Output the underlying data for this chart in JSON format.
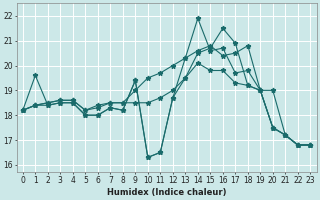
{
  "xlabel": "Humidex (Indice chaleur)",
  "bg_color": "#cce8e8",
  "line_color": "#1a6b6b",
  "grid_color": "#ffffff",
  "xlim": [
    -0.5,
    23.5
  ],
  "ylim": [
    15.7,
    22.5
  ],
  "yticks": [
    16,
    17,
    18,
    19,
    20,
    21,
    22
  ],
  "xticks": [
    0,
    1,
    2,
    3,
    4,
    5,
    6,
    7,
    8,
    9,
    10,
    11,
    12,
    13,
    14,
    15,
    16,
    17,
    18,
    19,
    20,
    21,
    22,
    23
  ],
  "series": [
    {
      "x": [
        0,
        1,
        2,
        3,
        4,
        5,
        6,
        7,
        8,
        9,
        10,
        11,
        12,
        13,
        14,
        15,
        16,
        17,
        18,
        19,
        20,
        21,
        22,
        23
      ],
      "y": [
        18.2,
        19.6,
        18.4,
        18.5,
        18.5,
        18.0,
        18.0,
        18.3,
        18.2,
        19.4,
        16.3,
        16.5,
        18.7,
        20.3,
        21.9,
        20.6,
        20.7,
        19.7,
        19.8,
        19.0,
        17.5,
        17.2,
        16.8,
        16.8
      ]
    },
    {
      "x": [
        0,
        1,
        2,
        3,
        4,
        5,
        6,
        7,
        8,
        9,
        10,
        11,
        12,
        13,
        14,
        15,
        16,
        17,
        18,
        19,
        20,
        21,
        22,
        23
      ],
      "y": [
        18.2,
        18.4,
        18.5,
        18.6,
        18.6,
        18.2,
        18.4,
        18.5,
        18.5,
        18.5,
        18.5,
        18.7,
        19.0,
        19.5,
        20.1,
        19.8,
        19.8,
        19.3,
        19.2,
        19.0,
        17.5,
        17.2,
        16.8,
        16.8
      ]
    },
    {
      "x": [
        0,
        1,
        2,
        3,
        4,
        5,
        6,
        7,
        8,
        9,
        10,
        11,
        12,
        13,
        14,
        15,
        16,
        17,
        18,
        19,
        20,
        21,
        22,
        23
      ],
      "y": [
        18.2,
        18.4,
        18.5,
        18.6,
        18.6,
        18.2,
        18.3,
        18.5,
        18.5,
        19.0,
        19.5,
        19.7,
        20.0,
        20.3,
        20.6,
        20.8,
        20.4,
        20.5,
        20.8,
        19.0,
        17.5,
        17.2,
        16.8,
        16.8
      ]
    },
    {
      "x": [
        0,
        1,
        2,
        3,
        4,
        5,
        6,
        7,
        8,
        9,
        10,
        11,
        12,
        13,
        14,
        15,
        16,
        17,
        18,
        19,
        20,
        21,
        22,
        23
      ],
      "y": [
        18.2,
        18.4,
        18.4,
        18.5,
        18.5,
        18.0,
        18.0,
        18.3,
        18.2,
        19.4,
        16.3,
        16.5,
        18.7,
        19.5,
        20.5,
        20.7,
        21.5,
        20.9,
        19.2,
        19.0,
        19.0,
        17.2,
        16.8,
        16.8
      ]
    }
  ]
}
